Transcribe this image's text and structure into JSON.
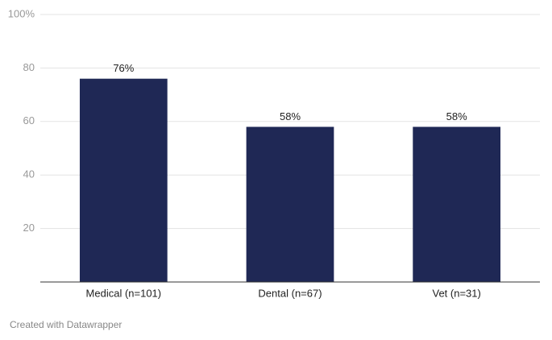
{
  "chart_data": {
    "type": "bar",
    "categories": [
      "Medical (n=101)",
      "Dental (n=67)",
      "Vet (n=31)"
    ],
    "values": [
      76,
      58,
      58
    ],
    "value_labels": [
      "76%",
      "58%",
      "58%"
    ],
    "color": "#1f2855",
    "ylim": [
      0,
      100
    ],
    "yticks": [
      20,
      40,
      60,
      80,
      {
        "value": 100,
        "label": "100%"
      }
    ],
    "grid": true,
    "credit": "Created with Datawrapper"
  }
}
